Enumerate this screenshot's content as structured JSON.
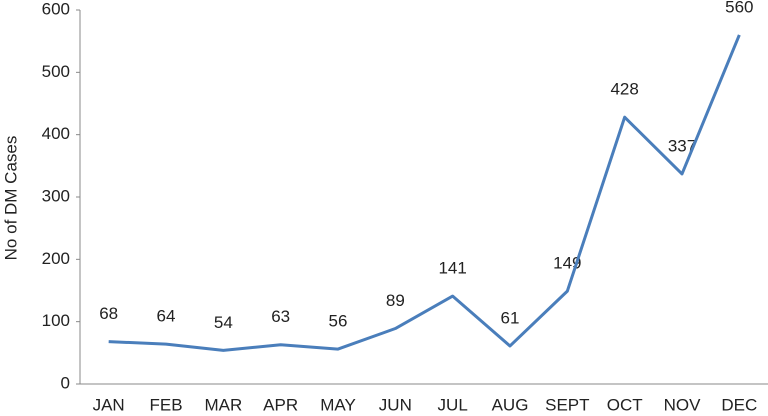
{
  "chart_data": {
    "type": "line",
    "y_label": "No of DM Cases",
    "categories": [
      "JAN",
      "FEB",
      "MAR",
      "APR",
      "MAY",
      "JUN",
      "JUL",
      "AUG",
      "SEPT",
      "OCT",
      "NOV",
      "DEC"
    ],
    "series": [
      {
        "name": "No of DM Cases",
        "color": "#4a7ebb",
        "values": [
          68,
          64,
          54,
          63,
          56,
          89,
          141,
          61,
          149,
          428,
          337,
          560
        ]
      }
    ],
    "ylim": [
      0,
      600
    ],
    "yticks": [
      0,
      100,
      200,
      300,
      400,
      500,
      600
    ],
    "grid": false
  }
}
